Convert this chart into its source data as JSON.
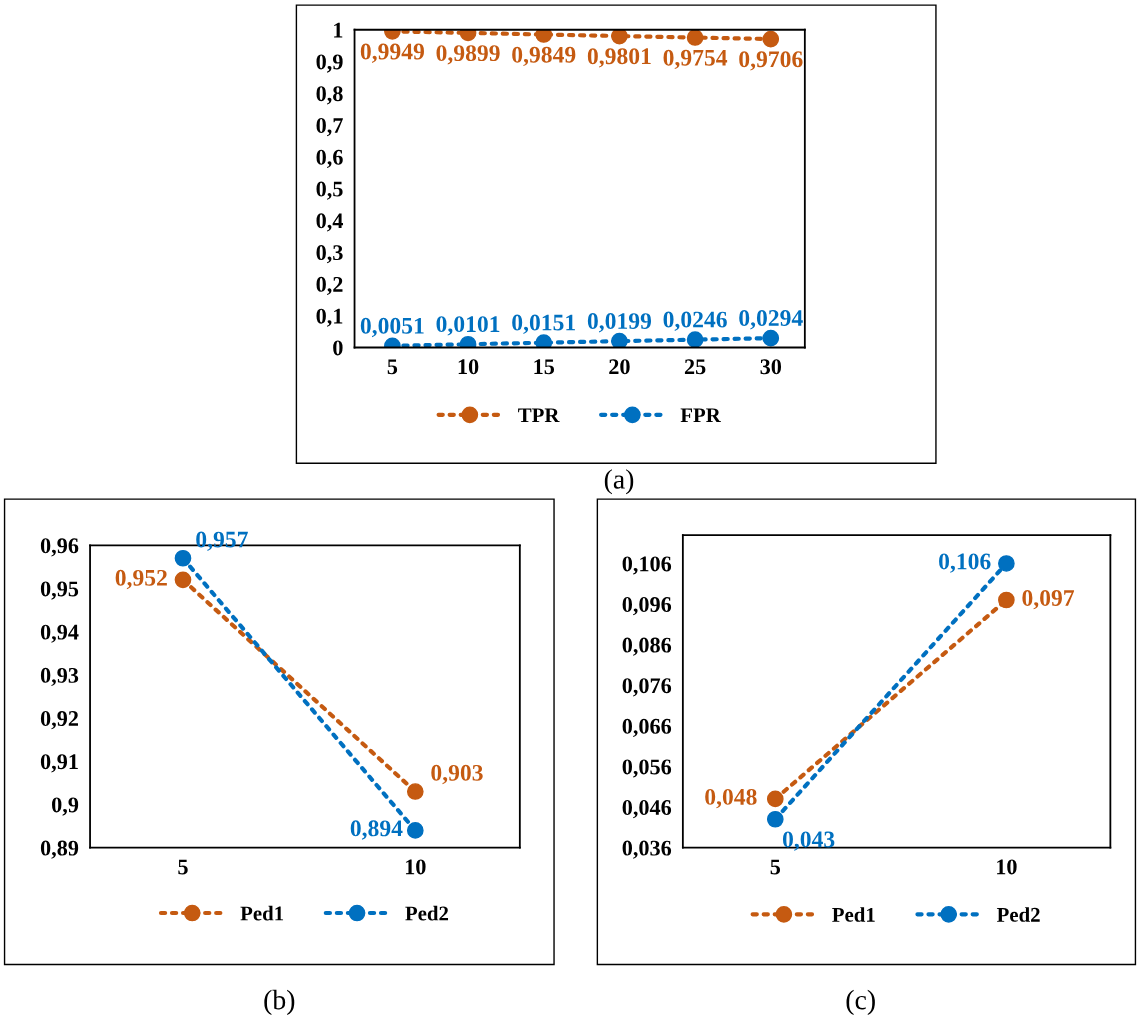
{
  "chart_data": [
    {
      "type": "line",
      "categories": [
        "5",
        "10",
        "15",
        "20",
        "25",
        "30"
      ],
      "ylim": [
        0,
        1
      ],
      "yticks": [
        {
          "value": 0,
          "label": "0"
        },
        {
          "value": 0.1,
          "label": "0,1"
        },
        {
          "value": 0.2,
          "label": "0,2"
        },
        {
          "value": 0.3,
          "label": "0,3"
        },
        {
          "value": 0.4,
          "label": "0,4"
        },
        {
          "value": 0.5,
          "label": "0,5"
        },
        {
          "value": 0.6,
          "label": "0,6"
        },
        {
          "value": 0.7,
          "label": "0,7"
        },
        {
          "value": 0.8,
          "label": "0,8"
        },
        {
          "value": 0.9,
          "label": "0,9"
        },
        {
          "value": 1,
          "label": "1"
        }
      ],
      "series": [
        {
          "name": "TPR",
          "color": "#c55a11",
          "values": [
            0.9949,
            0.9899,
            0.9849,
            0.9801,
            0.9754,
            0.9706
          ],
          "value_labels": [
            "0,9949",
            "0,9899",
            "0,9849",
            "0,9801",
            "0,9754",
            "0,9706"
          ]
        },
        {
          "name": "FPR",
          "color": "#0070c0",
          "values": [
            0.0051,
            0.0101,
            0.0151,
            0.0199,
            0.0246,
            0.0294
          ],
          "value_labels": [
            "0,0051",
            "0,0101",
            "0,0151",
            "0,0199",
            "0,0246",
            "0,0294"
          ]
        }
      ],
      "marker": "circle",
      "line_style": "dotted",
      "legend": "bottom",
      "grid": false,
      "annotations": [
        "(a)"
      ]
    },
    {
      "type": "line",
      "categories": [
        "5",
        "10"
      ],
      "ylim": [
        0.89,
        0.96
      ],
      "yticks": [
        {
          "value": 0.89,
          "label": "0,89"
        },
        {
          "value": 0.9,
          "label": "0,9"
        },
        {
          "value": 0.91,
          "label": "0,91"
        },
        {
          "value": 0.92,
          "label": "0,92"
        },
        {
          "value": 0.93,
          "label": "0,93"
        },
        {
          "value": 0.94,
          "label": "0,94"
        },
        {
          "value": 0.95,
          "label": "0,95"
        },
        {
          "value": 0.96,
          "label": "0,96"
        }
      ],
      "series": [
        {
          "name": "Ped1",
          "color": "#c55a11",
          "values": [
            0.952,
            0.903
          ],
          "value_labels": [
            "0,952",
            "0,903"
          ]
        },
        {
          "name": "Ped2",
          "color": "#0070c0",
          "values": [
            0.957,
            0.894
          ],
          "value_labels": [
            "0,957",
            "0,894"
          ]
        }
      ],
      "marker": "circle",
      "line_style": "dotted",
      "legend": "bottom",
      "grid": false,
      "annotations": [
        "(b)"
      ]
    },
    {
      "type": "line",
      "categories": [
        "5",
        "10"
      ],
      "ylim": [
        0.036,
        0.113
      ],
      "yticks": [
        {
          "value": 0.036,
          "label": "0,036"
        },
        {
          "value": 0.046,
          "label": "0,046"
        },
        {
          "value": 0.056,
          "label": "0,056"
        },
        {
          "value": 0.066,
          "label": "0,066"
        },
        {
          "value": 0.076,
          "label": "0,076"
        },
        {
          "value": 0.086,
          "label": "0,086"
        },
        {
          "value": 0.096,
          "label": "0,096"
        },
        {
          "value": 0.106,
          "label": "0,106"
        }
      ],
      "series": [
        {
          "name": "Ped1",
          "color": "#c55a11",
          "values": [
            0.048,
            0.097
          ],
          "value_labels": [
            "0,048",
            "0,097"
          ]
        },
        {
          "name": "Ped2",
          "color": "#0070c0",
          "values": [
            0.043,
            0.106
          ],
          "value_labels": [
            "0,043",
            "0,106"
          ]
        }
      ],
      "marker": "circle",
      "line_style": "dotted",
      "legend": "bottom",
      "grid": false,
      "annotations": [
        "(c)"
      ]
    }
  ]
}
